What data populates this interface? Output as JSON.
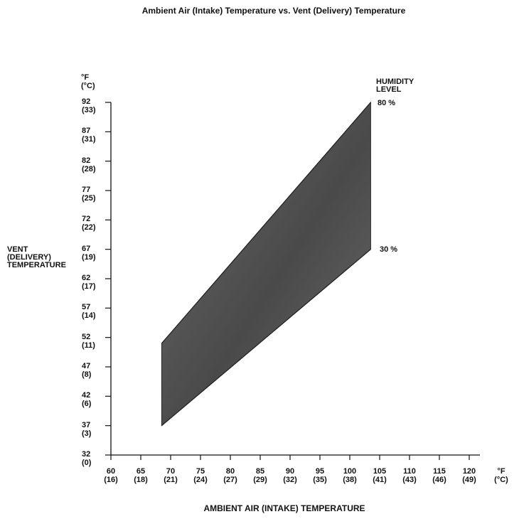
{
  "chart_data": {
    "type": "area",
    "title": "Ambient Air (Intake) Temperature vs. Vent (Delivery) Temperature",
    "xlabel": "AMBIENT AIR (INTAKE) TEMPERATURE",
    "ylabel_lines": [
      "VENT",
      "(DELIVERY)",
      "TEMPERATURE"
    ],
    "x_unit_lines": [
      "°F",
      "(°C)"
    ],
    "y_unit_lines": [
      "°F",
      "(°C)"
    ],
    "xlim": [
      60,
      120
    ],
    "ylim": [
      32,
      92
    ],
    "x_ticks": [
      {
        "f": "60",
        "c": "(16)"
      },
      {
        "f": "65",
        "c": "(18)"
      },
      {
        "f": "70",
        "c": "(21)"
      },
      {
        "f": "75",
        "c": "(24)"
      },
      {
        "f": "80",
        "c": "(27)"
      },
      {
        "f": "85",
        "c": "(29)"
      },
      {
        "f": "90",
        "c": "(32)"
      },
      {
        "f": "95",
        "c": "(35)"
      },
      {
        "f": "100",
        "c": "(38)"
      },
      {
        "f": "105",
        "c": "(41)"
      },
      {
        "f": "110",
        "c": "(43)"
      },
      {
        "f": "115",
        "c": "(46)"
      },
      {
        "f": "120",
        "c": "(49)"
      }
    ],
    "y_ticks": [
      {
        "f": "32",
        "c": "(0)"
      },
      {
        "f": "37",
        "c": "(3)"
      },
      {
        "f": "42",
        "c": "(6)"
      },
      {
        "f": "47",
        "c": "(8)"
      },
      {
        "f": "52",
        "c": "(11)"
      },
      {
        "f": "57",
        "c": "(14)"
      },
      {
        "f": "62",
        "c": "(17)"
      },
      {
        "f": "67",
        "c": "(19)"
      },
      {
        "f": "72",
        "c": "(22)"
      },
      {
        "f": "77",
        "c": "(25)"
      },
      {
        "f": "82",
        "c": "(28)"
      },
      {
        "f": "87",
        "c": "(31)"
      },
      {
        "f": "92",
        "c": "(33)"
      }
    ],
    "legend_title_lines": [
      "HUMIDITY",
      "LEVEL"
    ],
    "series": [
      {
        "name": "80 %",
        "x": [
          68.5,
          103.5
        ],
        "y": [
          51,
          92
        ]
      },
      {
        "name": "30 %",
        "x": [
          68.5,
          103.5
        ],
        "y": [
          37,
          67
        ]
      }
    ],
    "fill_color": "#5a5a5a",
    "grid": false
  }
}
